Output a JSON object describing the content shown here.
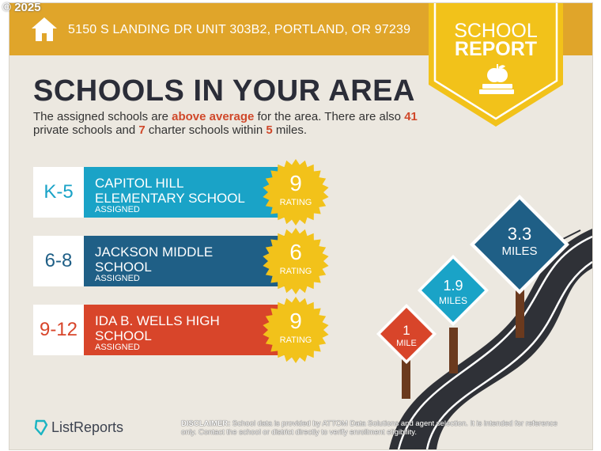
{
  "copyright": "© 2025",
  "header": {
    "address": "5150 S LANDING DR UNIT 303B2, PORTLAND, OR 97239",
    "home_icon": "home-icon"
  },
  "badge": {
    "line1": "SCHOOL",
    "line2": "REPORT",
    "icon": "apple-on-book-icon"
  },
  "title": "SCHOOLS IN YOUR AREA",
  "summary": {
    "part1": "The assigned schools are ",
    "highlight1": "above average",
    "part2": " for the area. There are also ",
    "private_count": "41",
    "part3": " private schools and ",
    "charter_count": "7",
    "part4": " charter schools within ",
    "miles": "5",
    "part5": " miles."
  },
  "schools": [
    {
      "grades": "K-5",
      "name": "CAPITOL HILL ELEMENTARY SCHOOL",
      "status": "ASSIGNED",
      "rating": "9",
      "rating_label": "RATING",
      "color": "#1aa3c7"
    },
    {
      "grades": "6-8",
      "name": "JACKSON MIDDLE SCHOOL",
      "status": "ASSIGNED",
      "rating": "6",
      "rating_label": "RATING",
      "color": "#1f5f86"
    },
    {
      "grades": "9-12",
      "name": "IDA B. WELLS HIGH SCHOOL",
      "status": "ASSIGNED",
      "rating": "9",
      "rating_label": "RATING",
      "color": "#d8452a"
    }
  ],
  "signs": [
    {
      "value": "1",
      "unit": "MILE",
      "color": "#d8452a"
    },
    {
      "value": "1.9",
      "unit": "MILES",
      "color": "#1aa3c7"
    },
    {
      "value": "3.3",
      "unit": "MILES",
      "color": "#1f5f86"
    }
  ],
  "footer": {
    "logo": "ListReports",
    "disclaimer_label": "DISCLAIMER:",
    "disclaimer_text": " School data is provided by ATTOM Data Solutions and agent selection. It is intended for reference only. Contact the school or district directly to verify enrollment eligibility."
  },
  "colors": {
    "accent_yellow": "#e0a52a",
    "badge_yellow": "#f2c21a",
    "background": "#ece8e0",
    "title": "#2b2d38",
    "highlight": "#d0482a"
  }
}
